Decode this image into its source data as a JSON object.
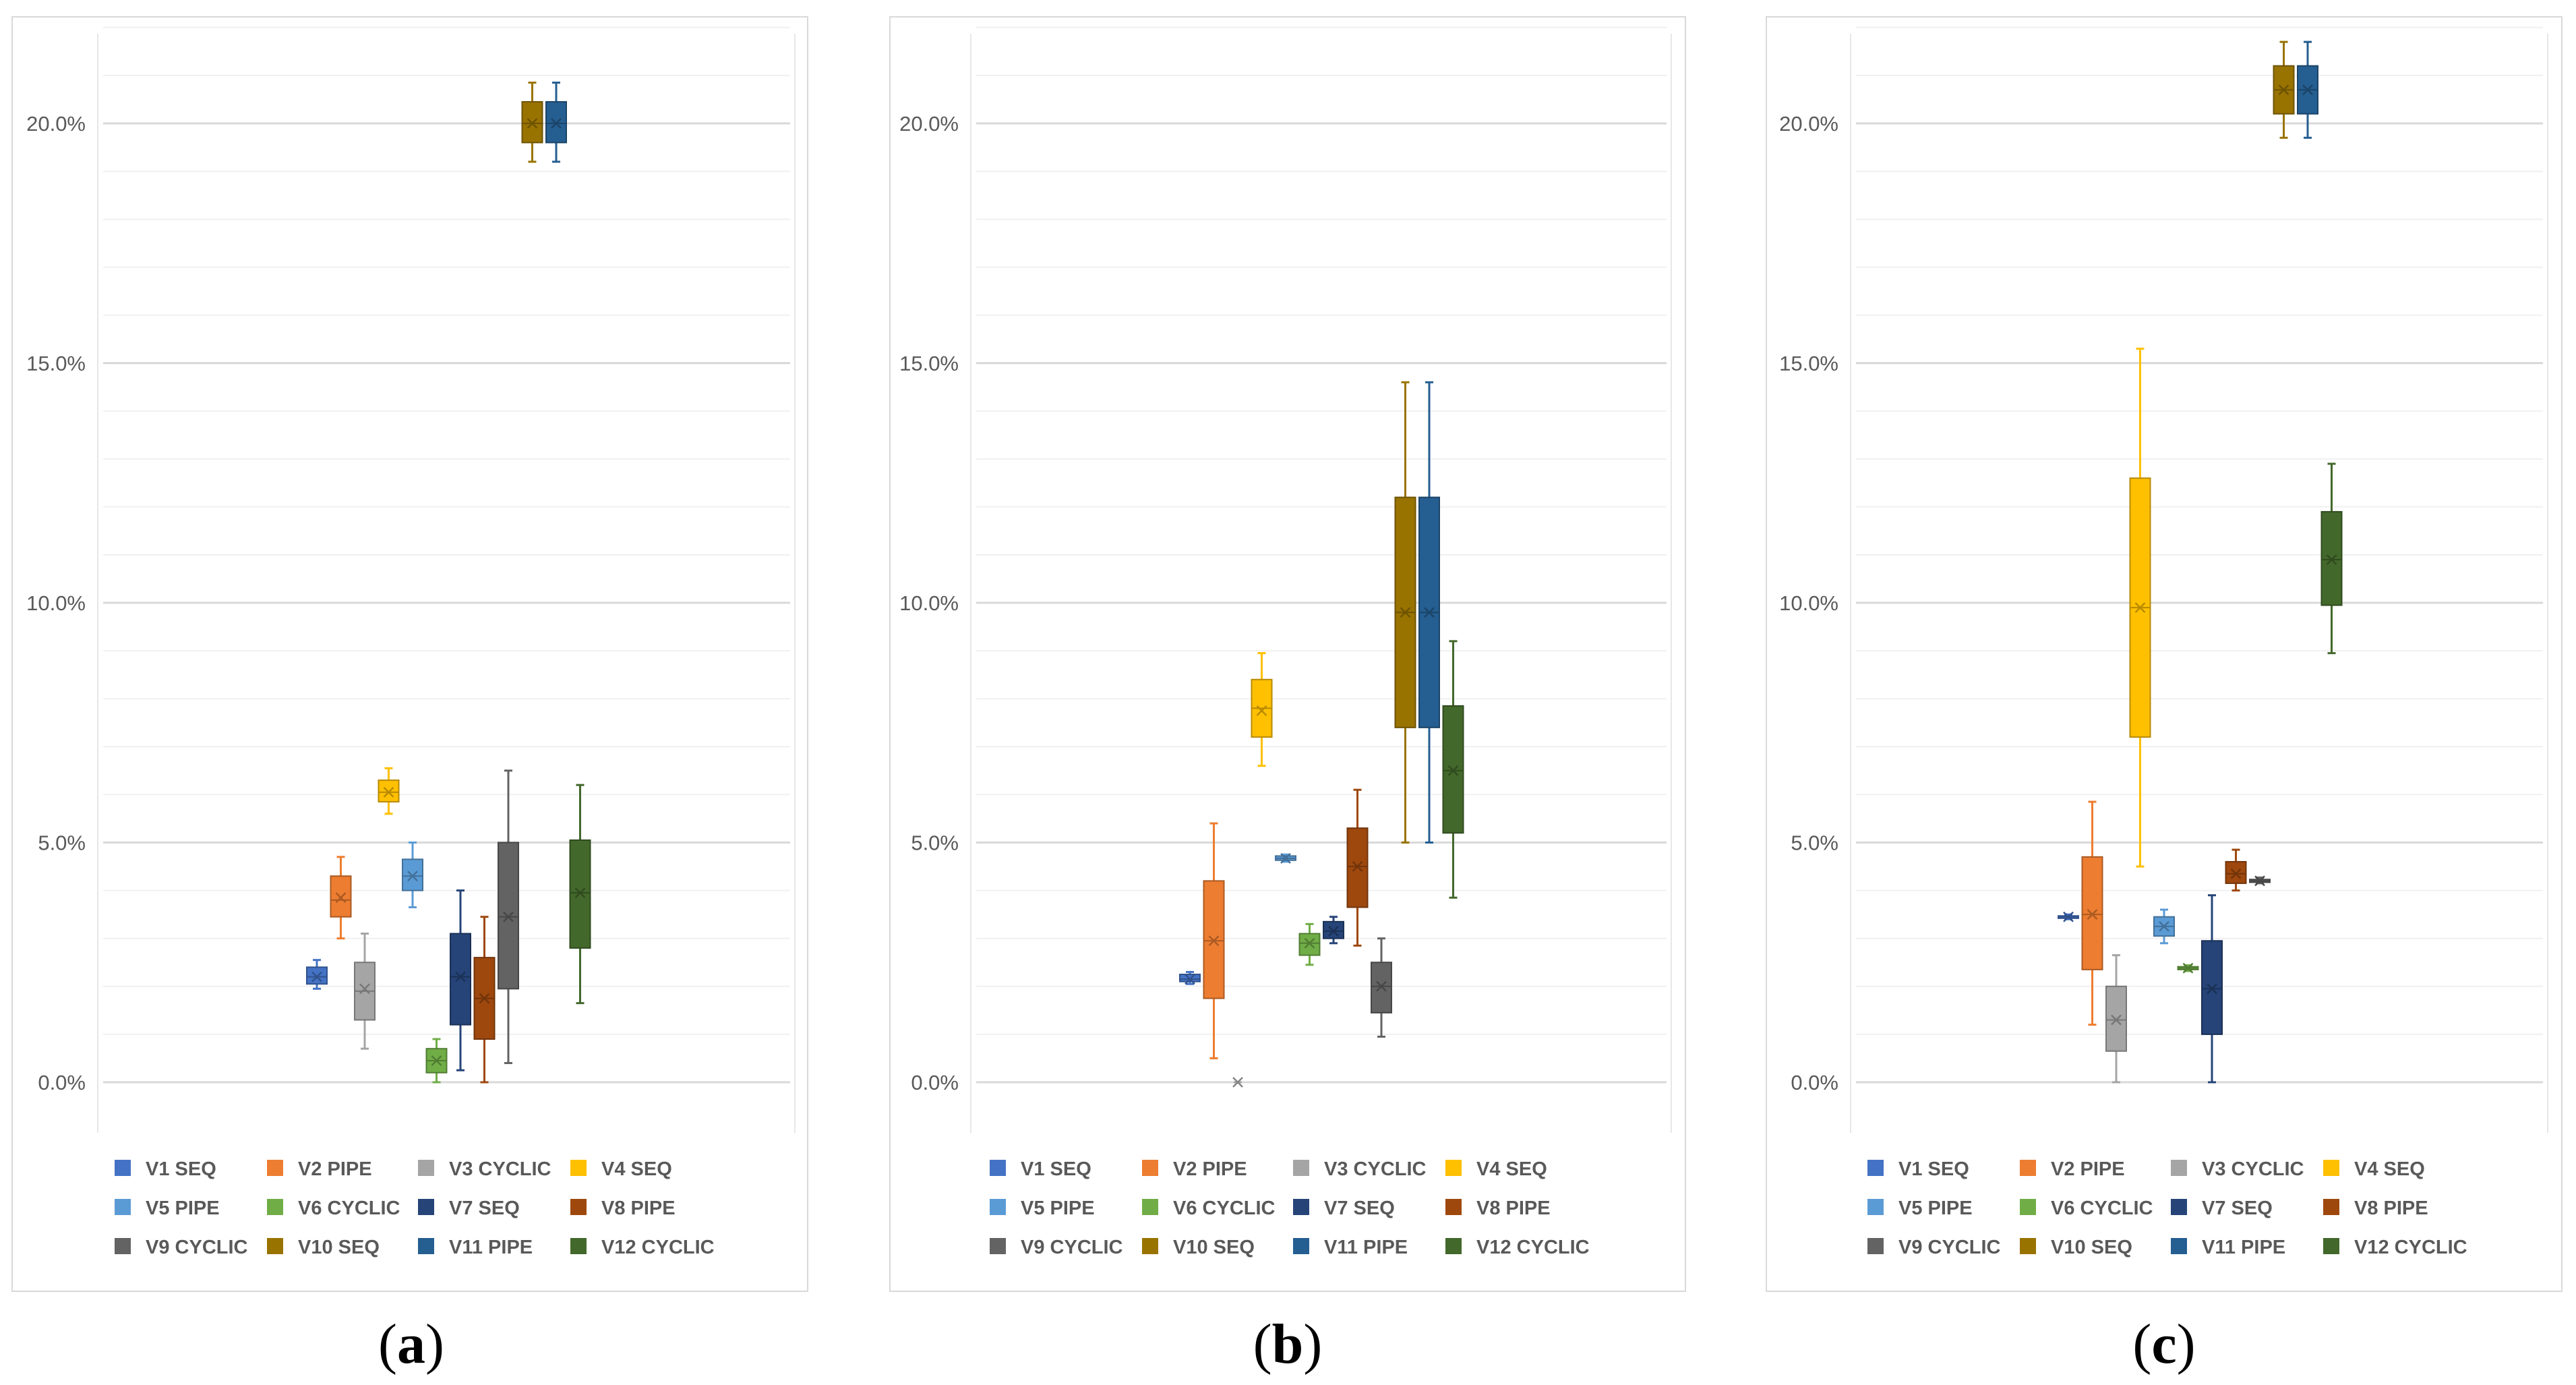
{
  "colors": {
    "V1": "#4472C4",
    "V2": "#ED7D31",
    "V3": "#A5A5A5",
    "V4": "#FFC000",
    "V5": "#5B9BD5",
    "V6": "#70AD47",
    "V7": "#264478",
    "V8": "#9E480E",
    "V9": "#636363",
    "V10": "#997300",
    "V11": "#255E91",
    "V12": "#43682B"
  },
  "chart_data": [
    {
      "type": "box",
      "caption": "a",
      "y_ticks": [
        "0.0%",
        "5.0%",
        "10.0%",
        "15.0%",
        "20.0%"
      ],
      "ylim": [
        -1.0,
        22.2
      ],
      "legend": [
        "V1 SEQ",
        "V2 PIPE",
        "V3 CYCLIC",
        "V4 SEQ",
        "V5 PIPE",
        "V6 CYCLIC",
        "V7 SEQ",
        "V8 PIPE",
        "V9 CYCLIC",
        "V10 SEQ",
        "V11 PIPE",
        "V12 CYCLIC"
      ],
      "series": [
        {
          "name": "V1 SEQ",
          "min": 1.95,
          "q1": 2.05,
          "median": 2.2,
          "q3": 2.4,
          "max": 2.55,
          "mean": 2.2
        },
        {
          "name": "V2 PIPE",
          "min": 3.0,
          "q1": 3.45,
          "median": 3.8,
          "q3": 4.3,
          "max": 4.7,
          "mean": 3.85
        },
        {
          "name": "V3 CYCLIC",
          "min": 0.7,
          "q1": 1.3,
          "median": 1.9,
          "q3": 2.5,
          "max": 3.1,
          "mean": 1.95
        },
        {
          "name": "V4 SEQ",
          "min": 5.6,
          "q1": 5.85,
          "median": 6.05,
          "q3": 6.3,
          "max": 6.55,
          "mean": 6.05
        },
        {
          "name": "V5 PIPE",
          "min": 3.65,
          "q1": 4.0,
          "median": 4.3,
          "q3": 4.65,
          "max": 5.0,
          "mean": 4.3
        },
        {
          "name": "V6 CYCLIC",
          "min": 0.0,
          "q1": 0.2,
          "median": 0.45,
          "q3": 0.7,
          "max": 0.9,
          "mean": 0.45
        },
        {
          "name": "V7 SEQ",
          "min": 0.25,
          "q1": 1.2,
          "median": 2.2,
          "q3": 3.1,
          "max": 4.0,
          "mean": 2.2
        },
        {
          "name": "V8 PIPE",
          "min": 0.0,
          "q1": 0.9,
          "median": 1.75,
          "q3": 2.6,
          "max": 3.45,
          "mean": 1.75
        },
        {
          "name": "V9 CYCLIC",
          "min": 0.4,
          "q1": 1.95,
          "median": 3.45,
          "q3": 5.0,
          "max": 6.5,
          "mean": 3.45
        },
        {
          "name": "V10 SEQ",
          "min": 19.2,
          "q1": 19.6,
          "median": 20.0,
          "q3": 20.45,
          "max": 20.85,
          "mean": 20.0
        },
        {
          "name": "V11 PIPE",
          "min": 19.2,
          "q1": 19.6,
          "median": 20.0,
          "q3": 20.45,
          "max": 20.85,
          "mean": 20.0
        },
        {
          "name": "V12 CYCLIC",
          "min": 1.65,
          "q1": 2.8,
          "median": 3.95,
          "q3": 5.05,
          "max": 6.2,
          "mean": 3.95
        }
      ]
    },
    {
      "type": "box",
      "caption": "b",
      "y_ticks": [
        "0.0%",
        "5.0%",
        "10.0%",
        "15.0%",
        "20.0%"
      ],
      "ylim": [
        -1.0,
        22.2
      ],
      "legend": [
        "V1 SEQ",
        "V2 PIPE",
        "V3 CYCLIC",
        "V4 SEQ",
        "V5 PIPE",
        "V6 CYCLIC",
        "V7 SEQ",
        "V8 PIPE",
        "V9 CYCLIC",
        "V10 SEQ",
        "V11 PIPE",
        "V12 CYCLIC"
      ],
      "series": [
        {
          "name": "V1 SEQ",
          "min": 2.05,
          "q1": 2.1,
          "median": 2.15,
          "q3": 2.25,
          "max": 2.3,
          "mean": 2.15
        },
        {
          "name": "V2 PIPE",
          "min": 0.5,
          "q1": 1.75,
          "median": 2.95,
          "q3": 4.2,
          "max": 5.4,
          "mean": 2.95
        },
        {
          "name": "V3 CYCLIC",
          "min": 0.0,
          "q1": 0.0,
          "median": 0.0,
          "q3": 0.0,
          "max": 0.0,
          "mean": 0.0
        },
        {
          "name": "V4 SEQ",
          "min": 6.6,
          "q1": 7.2,
          "median": 7.8,
          "q3": 8.4,
          "max": 8.95,
          "mean": 7.75
        },
        {
          "name": "V5 PIPE",
          "min": 4.6,
          "q1": 4.63,
          "median": 4.67,
          "q3": 4.72,
          "max": 4.75,
          "mean": 4.67
        },
        {
          "name": "V6 CYCLIC",
          "min": 2.45,
          "q1": 2.65,
          "median": 2.9,
          "q3": 3.1,
          "max": 3.3,
          "mean": 2.9
        },
        {
          "name": "V7 SEQ",
          "min": 2.9,
          "q1": 3.0,
          "median": 3.15,
          "q3": 3.35,
          "max": 3.45,
          "mean": 3.15
        },
        {
          "name": "V8 PIPE",
          "min": 2.85,
          "q1": 3.65,
          "median": 4.5,
          "q3": 5.3,
          "max": 6.1,
          "mean": 4.5
        },
        {
          "name": "V9 CYCLIC",
          "min": 0.95,
          "q1": 1.45,
          "median": 2.0,
          "q3": 2.5,
          "max": 3.0,
          "mean": 2.0
        },
        {
          "name": "V10 SEQ",
          "min": 5.0,
          "q1": 7.4,
          "median": 9.8,
          "q3": 12.2,
          "max": 14.6,
          "mean": 9.8
        },
        {
          "name": "V11 PIPE",
          "min": 5.0,
          "q1": 7.4,
          "median": 9.8,
          "q3": 12.2,
          "max": 14.6,
          "mean": 9.8
        },
        {
          "name": "V12 CYCLIC",
          "min": 3.85,
          "q1": 5.2,
          "median": 6.5,
          "q3": 7.85,
          "max": 9.2,
          "mean": 6.5
        }
      ]
    },
    {
      "type": "box",
      "caption": "c",
      "y_ticks": [
        "0.0%",
        "5.0%",
        "10.0%",
        "15.0%",
        "20.0%"
      ],
      "ylim": [
        -1.0,
        22.2
      ],
      "legend": [
        "V1 SEQ",
        "V2 PIPE",
        "V3 CYCLIC",
        "V4 SEQ",
        "V5 PIPE",
        "V6 CYCLIC",
        "V7 SEQ",
        "V8 PIPE",
        "V9 CYCLIC",
        "V10 SEQ",
        "V11 PIPE",
        "V12 CYCLIC"
      ],
      "series": [
        {
          "name": "V1 SEQ",
          "min": 3.4,
          "q1": 3.42,
          "median": 3.45,
          "q3": 3.47,
          "max": 3.5,
          "mean": 3.45
        },
        {
          "name": "V2 PIPE",
          "min": 1.2,
          "q1": 2.35,
          "median": 3.5,
          "q3": 4.7,
          "max": 5.85,
          "mean": 3.5
        },
        {
          "name": "V3 CYCLIC",
          "min": 0.0,
          "q1": 0.65,
          "median": 1.3,
          "q3": 2.0,
          "max": 2.65,
          "mean": 1.3
        },
        {
          "name": "V4 SEQ",
          "min": 4.5,
          "q1": 7.2,
          "median": 9.9,
          "q3": 12.6,
          "max": 15.3,
          "mean": 9.9
        },
        {
          "name": "V5 PIPE",
          "min": 2.9,
          "q1": 3.05,
          "median": 3.25,
          "q3": 3.45,
          "max": 3.6,
          "mean": 3.25
        },
        {
          "name": "V6 CYCLIC",
          "min": 2.32,
          "q1": 2.35,
          "median": 2.38,
          "q3": 2.41,
          "max": 2.44,
          "mean": 2.38
        },
        {
          "name": "V7 SEQ",
          "min": 0.0,
          "q1": 1.0,
          "median": 1.95,
          "q3": 2.95,
          "max": 3.9,
          "mean": 1.95
        },
        {
          "name": "V8 PIPE",
          "min": 4.0,
          "q1": 4.15,
          "median": 4.35,
          "q3": 4.6,
          "max": 4.85,
          "mean": 4.35
        },
        {
          "name": "V9 CYCLIC",
          "min": 4.15,
          "q1": 4.17,
          "median": 4.2,
          "q3": 4.23,
          "max": 4.27,
          "mean": 4.2
        },
        {
          "name": "V10 SEQ",
          "min": 19.7,
          "q1": 20.2,
          "median": 20.7,
          "q3": 21.2,
          "max": 21.7,
          "mean": 20.7
        },
        {
          "name": "V11 PIPE",
          "min": 19.7,
          "q1": 20.2,
          "median": 20.7,
          "q3": 21.2,
          "max": 21.7,
          "mean": 20.7
        },
        {
          "name": "V12 CYCLIC",
          "min": 8.95,
          "q1": 9.95,
          "median": 10.9,
          "q3": 11.9,
          "max": 12.9,
          "mean": 10.9
        }
      ]
    }
  ]
}
